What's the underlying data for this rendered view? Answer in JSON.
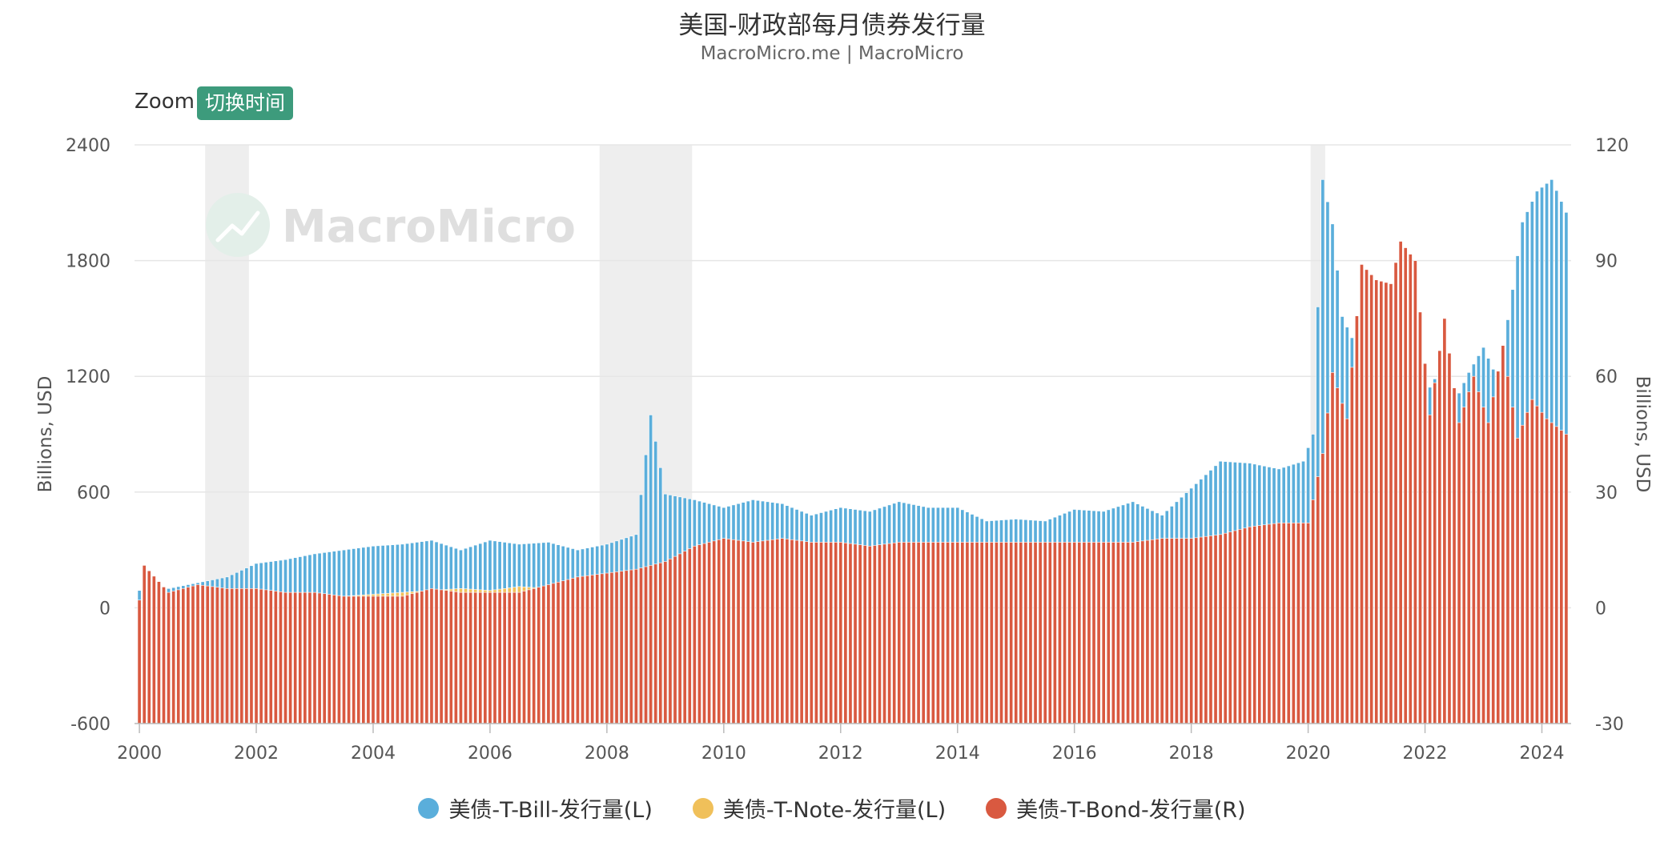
{
  "header": {
    "title": "美国-财政部每月债券发行量",
    "subtitle": "MacroMicro.me | MacroMicro"
  },
  "controls": {
    "zoom_label": "Zoom",
    "toggle_button": "切换时间"
  },
  "watermark": "MacroMicro",
  "colors": {
    "tbill": "#5aaedb",
    "tnote": "#f0c05a",
    "tbond": "#d95940",
    "recession": "#eeeeee",
    "grid": "#e6e6e6"
  },
  "chart_data": {
    "type": "bar",
    "title": "美国-财政部每月债券发行量",
    "y_left": {
      "label": "Billions, USD",
      "range": [
        -600,
        2400
      ],
      "ticks": [
        "2400",
        "1800",
        "1200",
        "600",
        "0",
        "-600"
      ]
    },
    "y_right": {
      "label": "Billions, USD",
      "range": [
        -30,
        120
      ],
      "ticks": [
        "120",
        "90",
        "60",
        "30",
        "0",
        "-30"
      ]
    },
    "x": {
      "range": [
        "2000-01",
        "2024-06"
      ],
      "ticks": [
        "2000",
        "2002",
        "2004",
        "2006",
        "2008",
        "2010",
        "2012",
        "2014",
        "2016",
        "2018",
        "2020",
        "2022",
        "2024"
      ]
    },
    "recessions": [
      [
        "2001-03",
        "2001-11"
      ],
      [
        "2007-12",
        "2009-06"
      ],
      [
        "2020-02",
        "2020-04"
      ]
    ],
    "series": [
      {
        "name": "美债-T-Bill-发行量(L)",
        "axis": "left",
        "key": "tbill",
        "points": [
          [
            "2000-01",
            90
          ],
          [
            "2000-07",
            100
          ],
          [
            "2001-01",
            130
          ],
          [
            "2001-07",
            160
          ],
          [
            "2002-01",
            230
          ],
          [
            "2002-07",
            250
          ],
          [
            "2003-01",
            280
          ],
          [
            "2003-07",
            300
          ],
          [
            "2004-01",
            320
          ],
          [
            "2004-07",
            330
          ],
          [
            "2005-01",
            350
          ],
          [
            "2005-07",
            300
          ],
          [
            "2006-01",
            350
          ],
          [
            "2006-07",
            330
          ],
          [
            "2007-01",
            340
          ],
          [
            "2007-07",
            300
          ],
          [
            "2008-01",
            330
          ],
          [
            "2008-07",
            380
          ],
          [
            "2008-10",
            1000
          ],
          [
            "2009-01",
            590
          ],
          [
            "2009-07",
            560
          ],
          [
            "2010-01",
            520
          ],
          [
            "2010-07",
            560
          ],
          [
            "2011-01",
            540
          ],
          [
            "2011-07",
            480
          ],
          [
            "2012-01",
            520
          ],
          [
            "2012-07",
            500
          ],
          [
            "2013-01",
            550
          ],
          [
            "2013-07",
            520
          ],
          [
            "2014-01",
            520
          ],
          [
            "2014-07",
            450
          ],
          [
            "2015-01",
            460
          ],
          [
            "2015-07",
            450
          ],
          [
            "2016-01",
            510
          ],
          [
            "2016-07",
            500
          ],
          [
            "2017-01",
            550
          ],
          [
            "2017-07",
            480
          ],
          [
            "2018-01",
            620
          ],
          [
            "2018-07",
            760
          ],
          [
            "2019-01",
            750
          ],
          [
            "2019-07",
            720
          ],
          [
            "2019-12",
            760
          ],
          [
            "2020-02",
            900
          ],
          [
            "2020-04",
            2220
          ],
          [
            "2020-06",
            1990
          ],
          [
            "2020-08",
            1510
          ],
          [
            "2020-10",
            1400
          ],
          [
            "2021-01",
            1580
          ],
          [
            "2021-04",
            1130
          ],
          [
            "2021-07",
            1100
          ],
          [
            "2021-10",
            1020
          ],
          [
            "2022-01",
            1100
          ],
          [
            "2022-04",
            1230
          ],
          [
            "2022-07",
            1060
          ],
          [
            "2022-10",
            1220
          ],
          [
            "2023-01",
            1350
          ],
          [
            "2023-04",
            1180
          ],
          [
            "2023-07",
            1650
          ],
          [
            "2023-09",
            2000
          ],
          [
            "2023-12",
            2160
          ],
          [
            "2024-03",
            2220
          ],
          [
            "2024-06",
            2050
          ]
        ]
      },
      {
        "name": "美债-T-Note-发行量(L)",
        "axis": "left",
        "key": "tnote",
        "points": [
          [
            "2000-01",
            20
          ],
          [
            "2000-07",
            50
          ],
          [
            "2001-01",
            40
          ],
          [
            "2001-07",
            30
          ],
          [
            "2002-01",
            40
          ],
          [
            "2002-07",
            60
          ],
          [
            "2003-01",
            55
          ],
          [
            "2003-07",
            60
          ],
          [
            "2004-01",
            70
          ],
          [
            "2004-07",
            80
          ],
          [
            "2005-01",
            90
          ],
          [
            "2005-07",
            100
          ],
          [
            "2006-01",
            90
          ],
          [
            "2006-07",
            110
          ],
          [
            "2007-01",
            100
          ],
          [
            "2007-07",
            80
          ],
          [
            "2008-01",
            80
          ],
          [
            "2008-07",
            110
          ],
          [
            "2009-01",
            120
          ],
          [
            "2009-06",
            130
          ],
          [
            "2009-07",
            0
          ],
          [
            "2024-06",
            0
          ]
        ]
      },
      {
        "name": "美债-T-Bond-发行量(R)",
        "axis": "right",
        "key": "tbond",
        "points": [
          [
            "2000-01",
            2
          ],
          [
            "2000-02",
            11
          ],
          [
            "2000-07",
            4
          ],
          [
            "2001-01",
            6
          ],
          [
            "2001-07",
            5
          ],
          [
            "2002-01",
            5
          ],
          [
            "2002-07",
            4
          ],
          [
            "2003-01",
            4
          ],
          [
            "2003-07",
            3
          ],
          [
            "2004-01",
            3
          ],
          [
            "2004-07",
            3
          ],
          [
            "2005-01",
            5
          ],
          [
            "2005-07",
            4
          ],
          [
            "2006-01",
            4
          ],
          [
            "2006-07",
            4
          ],
          [
            "2007-01",
            6
          ],
          [
            "2007-07",
            8
          ],
          [
            "2008-01",
            9
          ],
          [
            "2008-07",
            10
          ],
          [
            "2009-01",
            12
          ],
          [
            "2009-07",
            16
          ],
          [
            "2010-01",
            18
          ],
          [
            "2010-07",
            17
          ],
          [
            "2011-01",
            18
          ],
          [
            "2011-07",
            17
          ],
          [
            "2012-01",
            17
          ],
          [
            "2012-07",
            16
          ],
          [
            "2013-01",
            17
          ],
          [
            "2013-07",
            17
          ],
          [
            "2014-01",
            17
          ],
          [
            "2014-07",
            17
          ],
          [
            "2015-01",
            17
          ],
          [
            "2015-07",
            17
          ],
          [
            "2016-01",
            17
          ],
          [
            "2016-07",
            17
          ],
          [
            "2017-01",
            17
          ],
          [
            "2017-07",
            18
          ],
          [
            "2018-01",
            18
          ],
          [
            "2018-07",
            19
          ],
          [
            "2019-01",
            21
          ],
          [
            "2019-07",
            22
          ],
          [
            "2020-01",
            22
          ],
          [
            "2020-04",
            40
          ],
          [
            "2020-06",
            61
          ],
          [
            "2020-09",
            49
          ],
          [
            "2020-12",
            89
          ],
          [
            "2021-03",
            85
          ],
          [
            "2021-06",
            84
          ],
          [
            "2021-08",
            95
          ],
          [
            "2021-11",
            90
          ],
          [
            "2022-02",
            50
          ],
          [
            "2022-05",
            75
          ],
          [
            "2022-08",
            48
          ],
          [
            "2022-11",
            60
          ],
          [
            "2023-02",
            48
          ],
          [
            "2023-05",
            68
          ],
          [
            "2023-08",
            44
          ],
          [
            "2023-11",
            54
          ],
          [
            "2024-02",
            49
          ],
          [
            "2024-06",
            45
          ]
        ]
      }
    ],
    "legend": [
      "美债-T-Bill-发行量(L)",
      "美债-T-Note-发行量(L)",
      "美债-T-Bond-发行量(R)"
    ],
    "legend_position": "bottom",
    "grid": true
  }
}
